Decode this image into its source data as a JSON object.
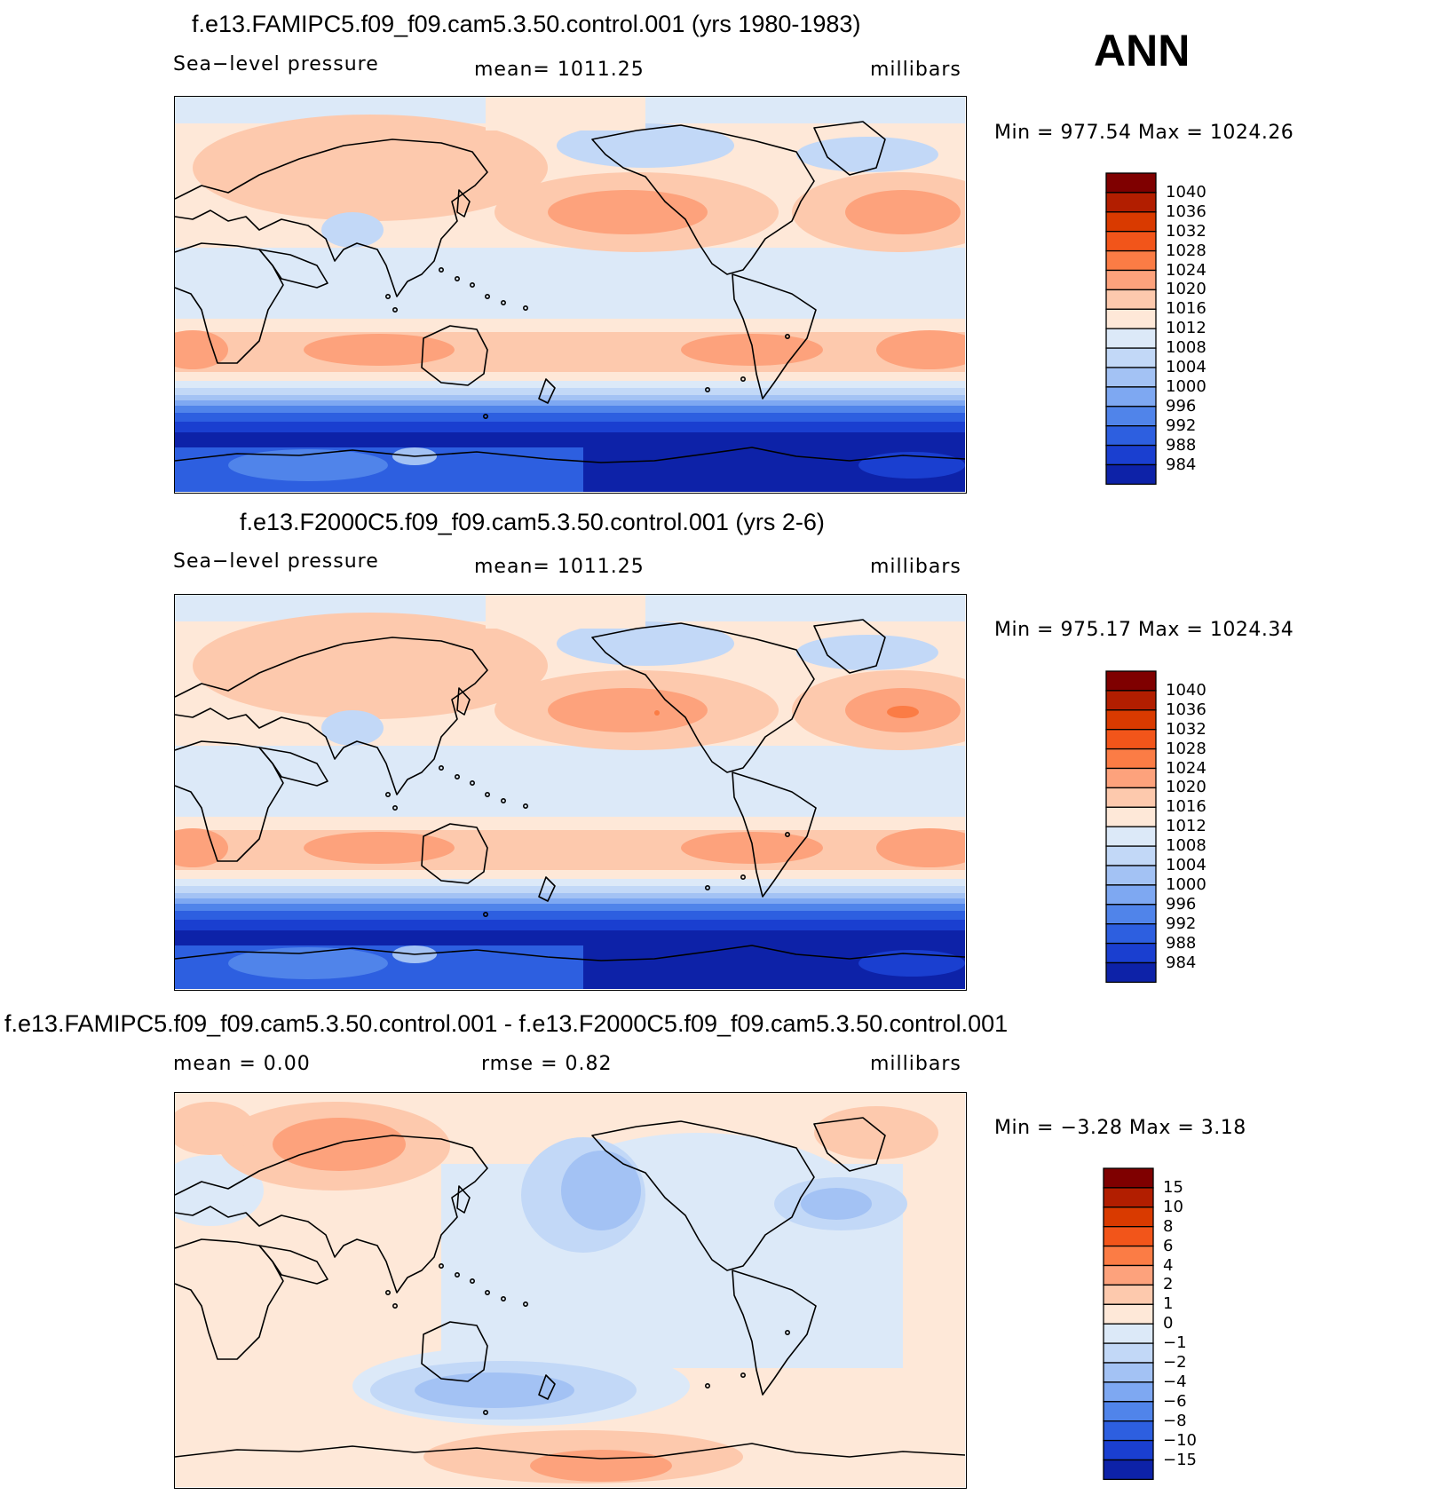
{
  "season": "ANN",
  "chart_data": [
    {
      "type": "heatmap",
      "title": "f.e13.FAMIPC5.f09_f09.cam5.3.50.control.001 (yrs 1980-1983)",
      "variable": "Sea−level pressure",
      "stat_text": "mean=  1011.25",
      "units": "millibars",
      "minmax_text": "Min  =  977.54  Max  =  1024.26",
      "min": 977.54,
      "max": 1024.26,
      "levels": [
        "1040",
        "1036",
        "1032",
        "1028",
        "1024",
        "1020",
        "1016",
        "1012",
        "1008",
        "1004",
        "1000",
        "996",
        "992",
        "988",
        "984"
      ],
      "colors": [
        "#7f0000",
        "#b21e00",
        "#d93a00",
        "#f2551a",
        "#fb7c45",
        "#fda27c",
        "#fdc9ad",
        "#fee8d8",
        "#dce9f8",
        "#c2d8f7",
        "#a3c2f4",
        "#7ea8f2",
        "#5084ea",
        "#2d5fe0",
        "#1a3fd0",
        "#0d22a8"
      ],
      "map_variant": "a"
    },
    {
      "type": "heatmap",
      "title": "f.e13.F2000C5.f09_f09.cam5.3.50.control.001 (yrs 2-6)",
      "variable": "Sea−level pressure",
      "stat_text": "mean=  1011.25",
      "units": "millibars",
      "minmax_text": "Min  =  975.17  Max  =  1024.34",
      "min": 975.17,
      "max": 1024.34,
      "levels": [
        "1040",
        "1036",
        "1032",
        "1028",
        "1024",
        "1020",
        "1016",
        "1012",
        "1008",
        "1004",
        "1000",
        "996",
        "992",
        "988",
        "984"
      ],
      "colors": [
        "#7f0000",
        "#b21e00",
        "#d93a00",
        "#f2551a",
        "#fb7c45",
        "#fda27c",
        "#fdc9ad",
        "#fee8d8",
        "#dce9f8",
        "#c2d8f7",
        "#a3c2f4",
        "#7ea8f2",
        "#5084ea",
        "#2d5fe0",
        "#1a3fd0",
        "#0d22a8"
      ],
      "map_variant": "b"
    },
    {
      "type": "heatmap",
      "title": "f.e13.FAMIPC5.f09_f09.cam5.3.50.control.001 - f.e13.F2000C5.f09_f09.cam5.3.50.control.001",
      "stat_text": "mean =     0.00",
      "rmse_text": "rmse  =     0.82",
      "units": "millibars",
      "minmax_text": "Min  =   −3.28  Max  =     3.18",
      "min": -3.28,
      "max": 3.18,
      "mean": 0.0,
      "rmse": 0.82,
      "levels": [
        "15",
        "10",
        "8",
        "6",
        "4",
        "2",
        "1",
        "0",
        "−1",
        "−2",
        "−4",
        "−6",
        "−8",
        "−10",
        "−15"
      ],
      "colors": [
        "#7f0000",
        "#b21e00",
        "#d93a00",
        "#f2551a",
        "#fb7c45",
        "#fda27c",
        "#fdc9ad",
        "#fee8d8",
        "#dce9f8",
        "#c2d8f7",
        "#a3c2f4",
        "#7ea8f2",
        "#5084ea",
        "#2d5fe0",
        "#1a3fd0",
        "#0d22a8"
      ],
      "map_variant": "diff"
    }
  ]
}
